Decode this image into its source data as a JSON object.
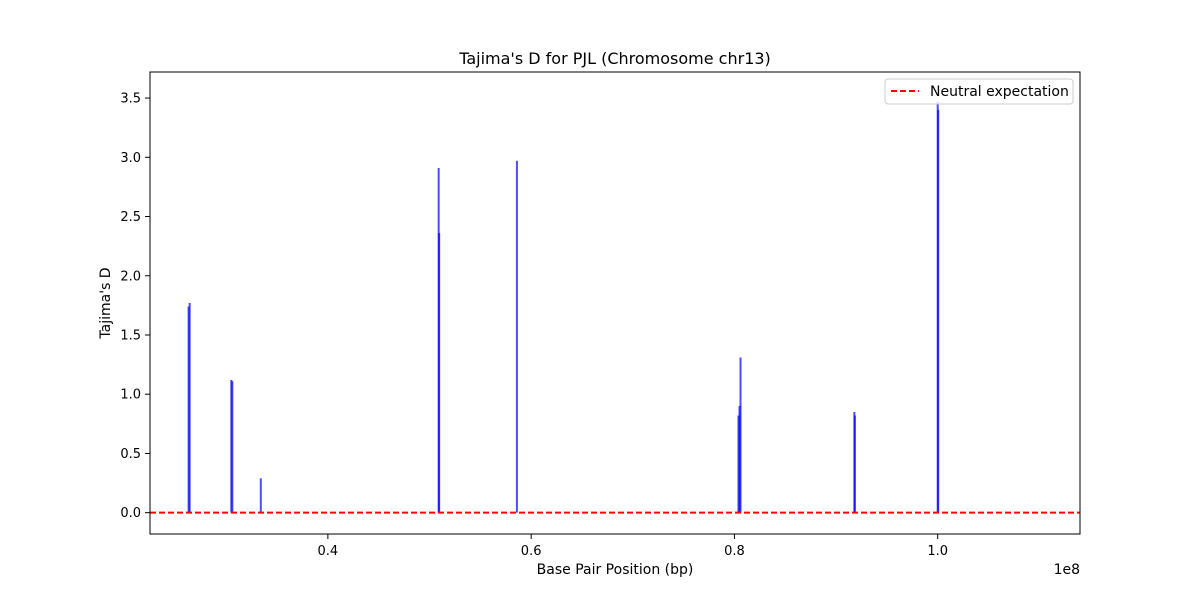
{
  "chart_data": {
    "type": "bar",
    "title": "Tajima's D for PJL (Chromosome chr13)",
    "xlabel": "Base Pair Position (bp)",
    "ylabel": "Tajima's D",
    "x_offset_label": "1e8",
    "xlim": [
      22500000,
      114000000
    ],
    "ylim": [
      -0.18,
      3.72
    ],
    "x_ticks": [
      {
        "value": 40000000,
        "label": "0.4"
      },
      {
        "value": 60000000,
        "label": "0.6"
      },
      {
        "value": 80000000,
        "label": "0.8"
      },
      {
        "value": 100000000,
        "label": "1.0"
      }
    ],
    "y_ticks": [
      {
        "value": 0.0,
        "label": "0.0"
      },
      {
        "value": 0.5,
        "label": "0.5"
      },
      {
        "value": 1.0,
        "label": "1.0"
      },
      {
        "value": 1.5,
        "label": "1.5"
      },
      {
        "value": 2.0,
        "label": "2.0"
      },
      {
        "value": 2.5,
        "label": "2.5"
      },
      {
        "value": 3.0,
        "label": "3.0"
      },
      {
        "value": 3.5,
        "label": "3.5"
      }
    ],
    "grid": false,
    "legend": {
      "placement": "top-right",
      "entries": [
        {
          "label": "Neutral expectation",
          "style": "dashed-line",
          "color": "#ff0000"
        }
      ]
    },
    "reference_line": {
      "y": 0.0,
      "style": "dashed",
      "color": "#ff0000"
    },
    "bar_color": "#0000ff",
    "series": [
      {
        "x": [
          26300000,
          26400000,
          30500000,
          30600000,
          33400000,
          50900000,
          50950000,
          58600000,
          80400000,
          80500000,
          80600000,
          91800000,
          91850000,
          100000000,
          100050000
        ],
        "values": [
          1.74,
          1.77,
          1.12,
          1.11,
          0.29,
          2.91,
          2.36,
          2.97,
          0.82,
          0.9,
          1.31,
          0.85,
          0.82,
          3.47,
          3.4
        ]
      }
    ]
  }
}
